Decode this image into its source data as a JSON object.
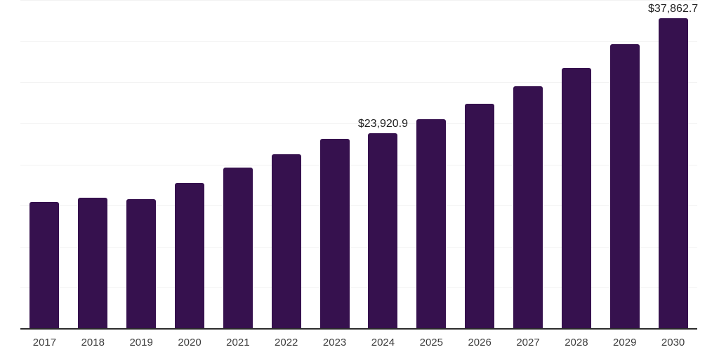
{
  "chart_data": {
    "type": "bar",
    "title": "",
    "xlabel": "",
    "ylabel": "",
    "categories": [
      "2017",
      "2018",
      "2019",
      "2020",
      "2021",
      "2022",
      "2023",
      "2024",
      "2025",
      "2026",
      "2027",
      "2028",
      "2029",
      "2030"
    ],
    "values": [
      15500,
      16060,
      15860,
      17830,
      19700,
      21320,
      23220,
      23920.9,
      25590,
      27440,
      29620,
      31840,
      34690,
      37862.7
    ],
    "value_labels": [
      "",
      "",
      "",
      "",
      "",
      "",
      "",
      "$23,920.9",
      "",
      "",
      "",
      "",
      "",
      "$37,862.7"
    ],
    "ylim": [
      0,
      40000
    ],
    "gridline_step": 5000,
    "grid": true,
    "legend_position": "none",
    "colors": {
      "bar": "#36114E",
      "gridline": "#f2f2f2",
      "axis_line": "#2b2b2b",
      "tick_label": "#3d3d3d",
      "value_label": "#1f1f1f",
      "background": "#ffffff"
    }
  }
}
